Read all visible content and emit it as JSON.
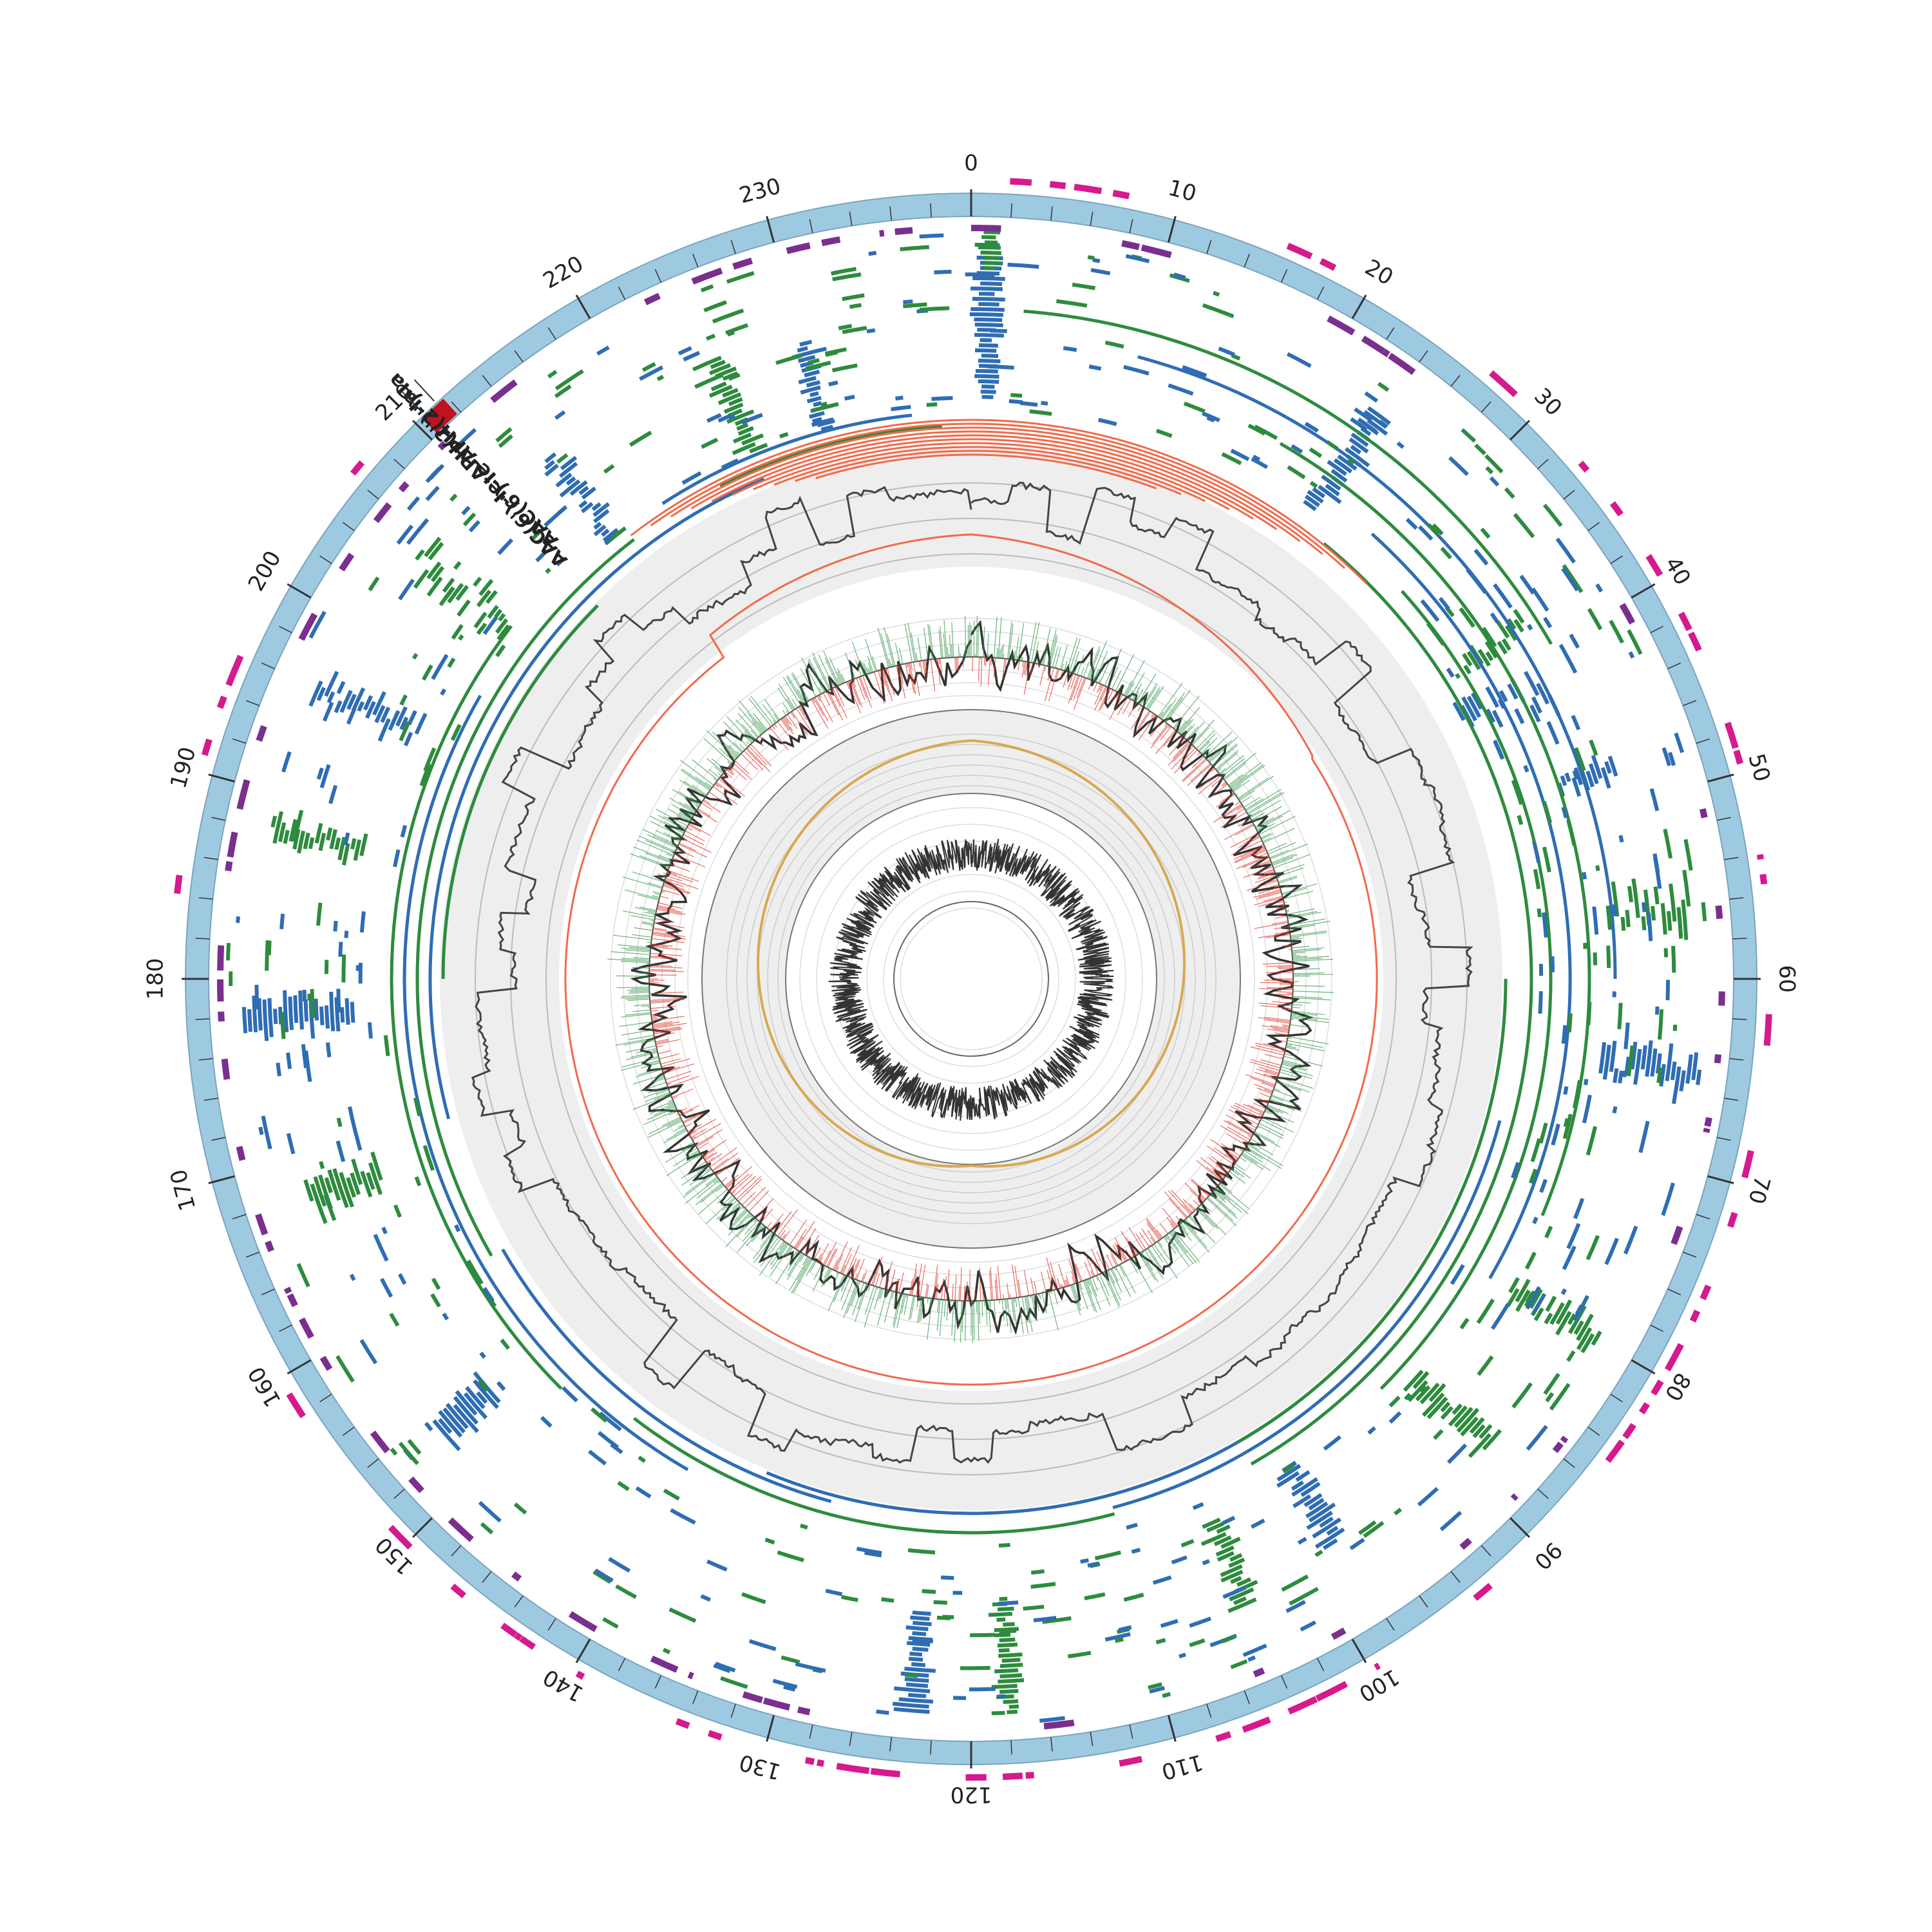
{
  "figure": {
    "type": "circular-genome-map",
    "genome_units": 240,
    "scale_labels": [
      "0",
      "10",
      "20",
      "30",
      "40",
      "50",
      "60",
      "70",
      "80",
      "90",
      "100",
      "110",
      "120",
      "130",
      "140",
      "150",
      "160",
      "170",
      "180",
      "190",
      "200",
      "210",
      "220",
      "230"
    ],
    "gene_labels": [
      {
        "text": "AAC(6')-Ie-APH(2'')-Ia",
        "position": 210.6
      },
      {
        "text": "AAC(6')-Ie-APH(2'')-Ia",
        "position": 211.4
      }
    ]
  },
  "colors": {
    "backbone": "#9ecae1",
    "cds_forward": "#d6198d",
    "cds_reverse": "#7a2f8e",
    "amr_gene": "#c1121f",
    "blast_blue": "#2f6db3",
    "blast_green": "#2e8b3e",
    "salmon": "#f06a4a",
    "gray_line": "#444444",
    "gc_skew_positive": "#3a9a4f",
    "gc_skew_negative": "#e03a2f",
    "cumulative": "#d8a850",
    "track_bg": "#eeeeee"
  }
}
